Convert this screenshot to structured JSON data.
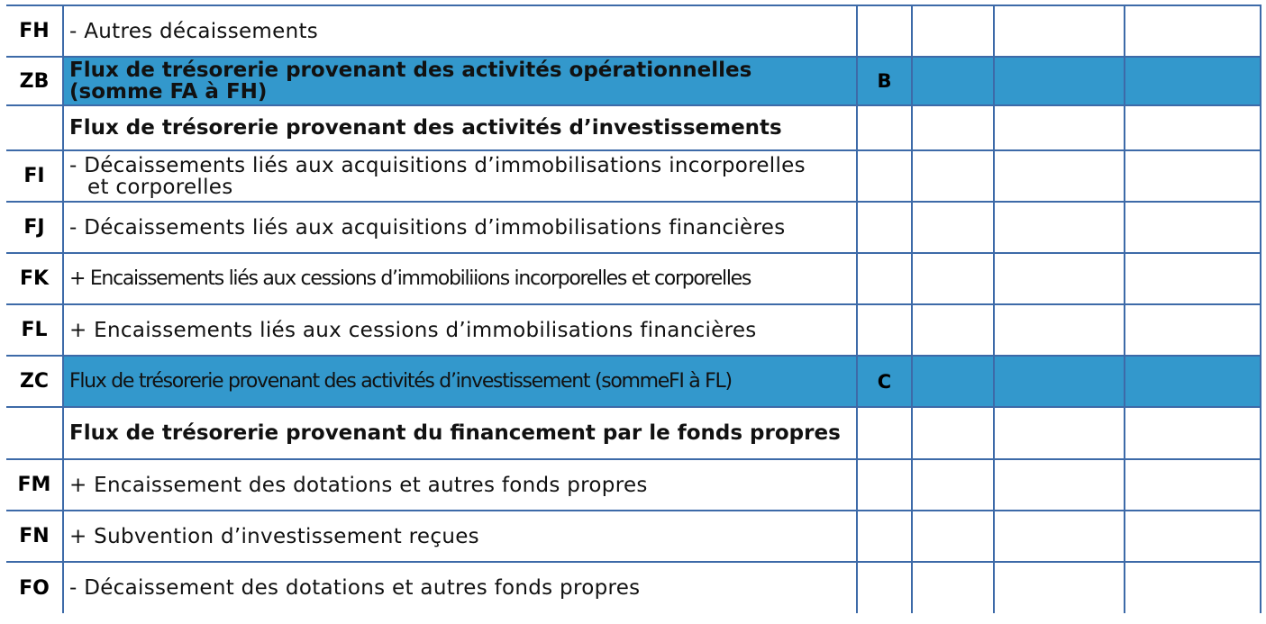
{
  "rows": [
    {
      "code": "FH",
      "line1": "- Autres décaissements",
      "line2": "",
      "ref": "",
      "style": "normal",
      "highlight": false
    },
    {
      "code": "ZB",
      "line1": "Flux de trésorerie provenant des activités opérationnelles",
      "line2": "(somme  FA à FH)",
      "ref": "B",
      "style": "bold",
      "highlight": true
    },
    {
      "code": "",
      "line1": "Flux de trésorerie provenant des activités d’investissements",
      "line2": "",
      "ref": "",
      "style": "bold",
      "highlight": false
    },
    {
      "code": "FI",
      "line1": "- Décaissements liés aux acquisitions d’immobilisations incorporelles",
      "line2": "et corporelles",
      "ref": "",
      "style": "normal",
      "highlight": false
    },
    {
      "code": "FJ",
      "line1": "- Décaissements liés aux acquisitions d’immobilisations financières",
      "line2": "",
      "ref": "",
      "style": "normal",
      "highlight": false
    },
    {
      "code": "FK",
      "line1": "+ Encaissements liés aux cessions d’immobiliions incorporelles et corporelles",
      "line2": "",
      "ref": "",
      "style": "narrow",
      "highlight": false
    },
    {
      "code": "FL",
      "line1": "+ Encaissements liés aux cessions d’immobilisations financières",
      "line2": "",
      "ref": "",
      "style": "normal",
      "highlight": false
    },
    {
      "code": "ZC",
      "line1": "Flux de trésorerie provenant des activités d’investissement (sommeFI à FL)",
      "line2": "",
      "ref": "C",
      "style": "narrow",
      "highlight": true
    },
    {
      "code": "",
      "line1": "Flux de trésorerie provenant du financement par le fonds propres",
      "line2": "",
      "ref": "",
      "style": "bold",
      "highlight": false
    },
    {
      "code": "FM",
      "line1": "+ Encaissement des dotations et autres fonds propres",
      "line2": "",
      "ref": "",
      "style": "normal",
      "highlight": false
    },
    {
      "code": "FN",
      "line1": "+ Subvention d’investissement reçues",
      "line2": "",
      "ref": "",
      "style": "normal",
      "highlight": false
    },
    {
      "code": "FO",
      "line1": "- Décaissement des dotations et autres fonds propres",
      "line2": "",
      "ref": "",
      "style": "normal",
      "highlight": false
    }
  ],
  "colors": {
    "highlight": "#3398cc",
    "border": "#3d6aa8"
  }
}
